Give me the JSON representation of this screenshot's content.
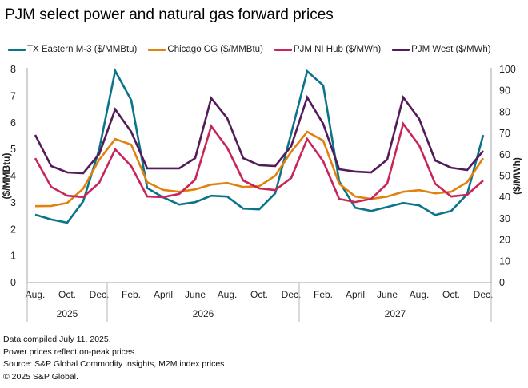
{
  "chart_data": {
    "type": "line",
    "title": "PJM select power and natural gas forward prices",
    "ylabel_left": "($/MMBtu)",
    "ylabel_right": "($/MWh)",
    "ylim_left": [
      0,
      8
    ],
    "ylim_right": [
      0,
      100
    ],
    "yticks_left": [
      "0",
      "1",
      "2",
      "3",
      "4",
      "5",
      "6",
      "7",
      "8"
    ],
    "yticks_right": [
      "0",
      "10",
      "20",
      "30",
      "40",
      "50",
      "60",
      "70",
      "80",
      "90",
      "100"
    ],
    "grid": false,
    "legend_position": "top",
    "x": [
      "2025-08",
      "2025-09",
      "2025-10",
      "2025-11",
      "2025-12",
      "2026-01",
      "2026-02",
      "2026-03",
      "2026-04",
      "2026-05",
      "2026-06",
      "2026-07",
      "2026-08",
      "2026-09",
      "2026-10",
      "2026-11",
      "2026-12",
      "2027-01",
      "2027-02",
      "2027-03",
      "2027-04",
      "2027-05",
      "2027-06",
      "2027-07",
      "2027-08",
      "2027-09",
      "2027-10",
      "2027-11",
      "2027-12"
    ],
    "xtick_labels": [
      {
        "index": 0,
        "label": "Aug."
      },
      {
        "index": 2,
        "label": "Oct."
      },
      {
        "index": 4,
        "label": "Dec."
      },
      {
        "index": 6,
        "label": "Feb."
      },
      {
        "index": 8,
        "label": "April"
      },
      {
        "index": 10,
        "label": "June"
      },
      {
        "index": 12,
        "label": "Aug."
      },
      {
        "index": 14,
        "label": "Oct."
      },
      {
        "index": 16,
        "label": "Dec."
      },
      {
        "index": 18,
        "label": "Feb."
      },
      {
        "index": 20,
        "label": "April"
      },
      {
        "index": 22,
        "label": "June"
      },
      {
        "index": 24,
        "label": "Aug."
      },
      {
        "index": 26,
        "label": "Oct."
      },
      {
        "index": 28,
        "label": "Dec."
      }
    ],
    "year_groups": [
      {
        "label": "2025",
        "start": 0,
        "end": 4
      },
      {
        "label": "2026",
        "start": 5,
        "end": 16
      },
      {
        "label": "2027",
        "start": 17,
        "end": 28
      }
    ],
    "series": [
      {
        "name": "TX Eastern M-3 ($/MMBtu)",
        "axis": "left",
        "color": "#0c7489",
        "values": [
          2.55,
          2.37,
          2.25,
          3.05,
          5.0,
          7.95,
          6.85,
          3.55,
          3.2,
          2.93,
          3.02,
          3.26,
          3.23,
          2.78,
          2.75,
          3.35,
          5.6,
          7.93,
          7.4,
          3.8,
          2.81,
          2.69,
          2.84,
          2.99,
          2.9,
          2.54,
          2.69,
          3.32,
          5.54
        ]
      },
      {
        "name": "Chicago CG ($/MMBtu)",
        "axis": "left",
        "color": "#e1820e",
        "values": [
          2.87,
          2.88,
          2.99,
          3.53,
          4.61,
          5.39,
          5.18,
          3.77,
          3.48,
          3.41,
          3.5,
          3.68,
          3.74,
          3.59,
          3.62,
          4.01,
          4.91,
          5.66,
          5.33,
          3.71,
          3.23,
          3.14,
          3.23,
          3.41,
          3.47,
          3.35,
          3.41,
          3.77,
          4.67
        ]
      },
      {
        "name": "PJM NI Hub ($/MWh)",
        "axis": "right",
        "color": "#c8255a",
        "values": [
          58.4,
          44.9,
          40.8,
          40.1,
          46.8,
          62.5,
          54.7,
          40.4,
          40.1,
          41.6,
          48.3,
          73.4,
          63.3,
          47.9,
          44.2,
          43.4,
          49.1,
          67.4,
          56.9,
          39.3,
          37.8,
          39.3,
          46.4,
          74.5,
          64.4,
          46.4,
          40.4,
          41.2,
          47.9
        ]
      },
      {
        "name": "PJM West ($/MWh)",
        "axis": "right",
        "color": "#541b5a",
        "values": [
          69.3,
          54.7,
          51.7,
          51.3,
          60.3,
          81.3,
          70.8,
          53.6,
          53.6,
          53.6,
          58.4,
          86.5,
          77.2,
          58.4,
          55.1,
          54.7,
          64.0,
          86.9,
          74.5,
          53.2,
          52.1,
          51.7,
          57.7,
          86.9,
          76.8,
          57.3,
          53.9,
          52.8,
          61.8
        ]
      }
    ]
  },
  "footnotes": [
    "Data compiled July 11, 2025.",
    "Power prices reflect on-peak prices.",
    "Source: S&P Global Commodity Insights, M2M index prices.",
    "© 2025 S&P Global."
  ]
}
